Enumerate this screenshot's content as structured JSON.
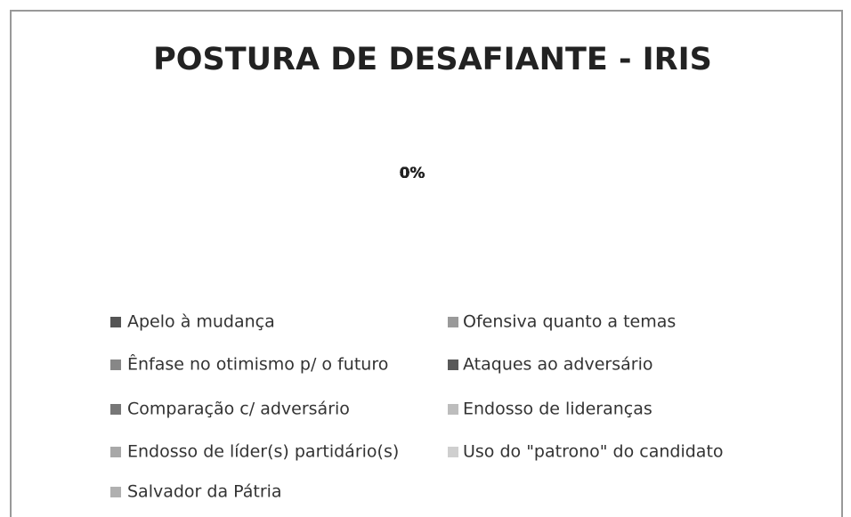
{
  "chart_data": {
    "type": "pie",
    "title": "POSTURA DE DESAFIANTE - IRIS",
    "categories": [
      "Apelo à mudança",
      "Ofensiva quanto a temas",
      "Ênfase no otimismo p/ o futuro",
      "Ataques ao adversário",
      "Comparação c/ adversário",
      "Endosso de lideranças",
      "Endosso de líder(s) partidário(s)",
      "Uso do \"patrono\" do candidato",
      "Salvador da Pátria"
    ],
    "values": [
      0,
      0,
      0,
      0,
      0,
      0,
      0,
      0,
      0
    ],
    "value_labels": [
      "0%",
      "0%",
      "0%",
      "0%",
      "0%",
      "0%",
      "0%",
      "0%",
      "0%"
    ],
    "colors": [
      "#555555",
      "#9a9a9a",
      "#878787",
      "#595959",
      "#777777",
      "#bdbdbd",
      "#a8a8a8",
      "#cfcfcf",
      "#b0b0b0"
    ],
    "legend": "bottom"
  }
}
